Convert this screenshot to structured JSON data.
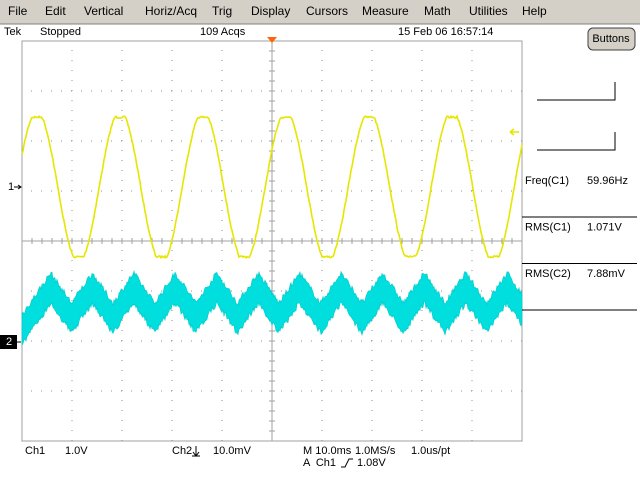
{
  "menu": [
    "File",
    "Edit",
    "Vertical",
    "Horiz/Acq",
    "Trig",
    "Display",
    "Cursors",
    "Measure",
    "Math",
    "Utilities",
    "Help"
  ],
  "status": {
    "scope": "Tek",
    "state": "Stopped",
    "acquisitions": "109 Acqs",
    "timestamp": "15 Feb 06 16:57:14"
  },
  "buttons_label": "Buttons",
  "channel_markers": [
    "1",
    "2"
  ],
  "measurements": [
    {
      "label": "Freq(C1)",
      "value": "59.96Hz"
    },
    {
      "label": "RMS(C1)",
      "value": "1.071V"
    },
    {
      "label": "RMS(C2)",
      "value": "7.88mV"
    }
  ],
  "readout": {
    "ch1": "Ch1",
    "ch1_scale": "1.0V",
    "ch2": "Ch2",
    "ch2_scale": "10.0mV",
    "timebase": "M 10.0ms",
    "sample_rate": "1.0MS/s",
    "resolution": "1.0us/pt",
    "trigger_source": "A  Ch1",
    "trigger_level": "1.08V"
  }
}
